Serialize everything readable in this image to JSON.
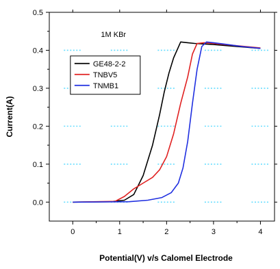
{
  "chart_data": {
    "type": "line",
    "xlabel": "Potential(V) v/s Calomel Electrode",
    "ylabel": "Current(A)",
    "xlim": [
      -0.5,
      4.3
    ],
    "ylim": [
      -0.05,
      0.5
    ],
    "x_ticks": [
      0,
      1,
      2,
      3,
      4
    ],
    "x_tick_labels": [
      "0",
      "1",
      "2",
      "3",
      "4"
    ],
    "y_ticks": [
      0.0,
      0.1,
      0.2,
      0.3,
      0.4,
      0.5
    ],
    "y_tick_labels": [
      "0.0",
      "0.1",
      "0.2",
      "0.3",
      "0.4",
      "0.5"
    ],
    "grid": "dotted",
    "grid_color": "#66ddff",
    "legend_position": "upper-left",
    "annotation": "1M KBr",
    "series": [
      {
        "name": "GE48-2-2",
        "color": "#000000",
        "points": [
          [
            0,
            0
          ],
          [
            0.8,
            0.001
          ],
          [
            1.1,
            0.005
          ],
          [
            1.3,
            0.02
          ],
          [
            1.5,
            0.07
          ],
          [
            1.7,
            0.15
          ],
          [
            1.85,
            0.23
          ],
          [
            1.95,
            0.29
          ],
          [
            2.05,
            0.34
          ],
          [
            2.15,
            0.38
          ],
          [
            2.3,
            0.422
          ],
          [
            2.45,
            0.42
          ],
          [
            2.6,
            0.418
          ],
          [
            3.0,
            0.415
          ],
          [
            3.5,
            0.41
          ],
          [
            4.0,
            0.405
          ]
        ]
      },
      {
        "name": "TNBV5",
        "color": "#e02020",
        "points": [
          [
            0,
            0
          ],
          [
            0.9,
            0.002
          ],
          [
            1.1,
            0.015
          ],
          [
            1.3,
            0.035
          ],
          [
            1.5,
            0.05
          ],
          [
            1.7,
            0.065
          ],
          [
            1.85,
            0.085
          ],
          [
            2.0,
            0.12
          ],
          [
            2.15,
            0.18
          ],
          [
            2.3,
            0.26
          ],
          [
            2.45,
            0.33
          ],
          [
            2.55,
            0.39
          ],
          [
            2.65,
            0.418
          ],
          [
            2.8,
            0.42
          ],
          [
            3.0,
            0.418
          ],
          [
            3.5,
            0.412
          ],
          [
            4.0,
            0.406
          ]
        ]
      },
      {
        "name": "TNMB1",
        "color": "#1f2fe0",
        "points": [
          [
            0,
            0
          ],
          [
            1.2,
            0.001
          ],
          [
            1.6,
            0.005
          ],
          [
            1.9,
            0.012
          ],
          [
            2.1,
            0.025
          ],
          [
            2.25,
            0.05
          ],
          [
            2.35,
            0.09
          ],
          [
            2.45,
            0.16
          ],
          [
            2.55,
            0.26
          ],
          [
            2.65,
            0.35
          ],
          [
            2.75,
            0.41
          ],
          [
            2.85,
            0.422
          ],
          [
            3.0,
            0.42
          ],
          [
            3.3,
            0.415
          ],
          [
            3.6,
            0.41
          ],
          [
            4.0,
            0.405
          ]
        ]
      }
    ]
  }
}
